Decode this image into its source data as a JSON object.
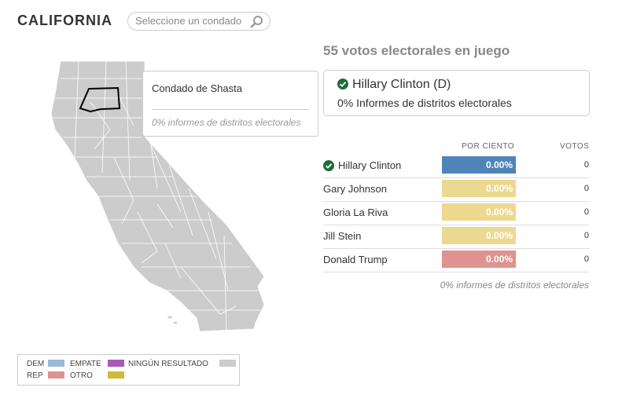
{
  "header": {
    "state": "CALIFORNIA",
    "search_placeholder": "Seleccione un condado",
    "search_icon": "magnifier-icon"
  },
  "tooltip": {
    "county": "Condado de Shasta",
    "reporting": "0% informes de distritos electorales"
  },
  "electoral_votes": "55 votos electorales en juego",
  "winner": {
    "name": "Hillary Clinton (D)",
    "reporting": "0% Informes de distritos electorales"
  },
  "table": {
    "col_percent": "POR CIENTO",
    "col_votes": "VOTOS",
    "rows": [
      {
        "name": "Hillary Clinton",
        "percent": "0.00%",
        "votes": "0",
        "color": "#4f84b8",
        "winner": true
      },
      {
        "name": "Gary Johnson",
        "percent": "0.00%",
        "votes": "0",
        "color": "#ecd990",
        "winner": false
      },
      {
        "name": "Gloria La Riva",
        "percent": "0.00%",
        "votes": "0",
        "color": "#ecd990",
        "winner": false
      },
      {
        "name": "Jill Stein",
        "percent": "0.00%",
        "votes": "0",
        "color": "#ecd990",
        "winner": false
      },
      {
        "name": "Donald Trump",
        "percent": "0.00%",
        "votes": "0",
        "color": "#de9390",
        "winner": false
      }
    ],
    "footer": "0% informes de distritos electorales"
  },
  "legend": {
    "dem": "DEM",
    "rep": "REP",
    "tie": "EMPATE",
    "other": "OTRO",
    "none": "NINGÚN RESULTADO",
    "colors": {
      "dem": "#9bb8d6",
      "rep": "#de9390",
      "tie": "#a75bb5",
      "other": "#cfb93a",
      "none": "#ccc"
    }
  },
  "colors": {
    "check": "#1e6b3a",
    "map_fill": "#cccccc",
    "map_stroke": "#ffffff"
  }
}
